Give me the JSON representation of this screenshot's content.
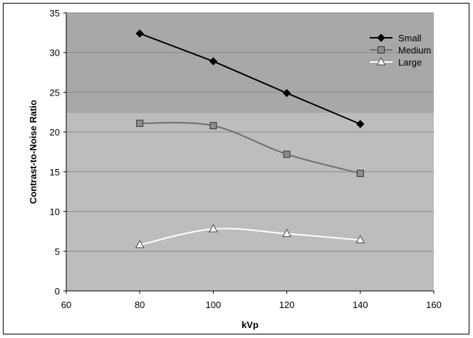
{
  "chart_data": {
    "type": "line",
    "title": "",
    "xlabel": "kVp",
    "ylabel": "Contrast-to-Noise Ratio",
    "xlim": [
      60,
      160
    ],
    "ylim": [
      0,
      35
    ],
    "x_ticks": [
      60,
      80,
      100,
      120,
      140,
      160
    ],
    "y_ticks": [
      0,
      5,
      10,
      15,
      20,
      25,
      30,
      35
    ],
    "grid": "horizontal",
    "legend_position": "top-right",
    "x": [
      80,
      100,
      120,
      140
    ],
    "series": [
      {
        "name": "Small",
        "values": [
          32.4,
          28.9,
          24.9,
          21.0
        ],
        "color": "#000000",
        "marker": "diamond",
        "marker_fill": "#000000"
      },
      {
        "name": "Medium",
        "values": [
          21.1,
          20.8,
          17.2,
          14.8
        ],
        "color": "#6e6e6e",
        "marker": "square",
        "marker_fill": "#8c8c8c"
      },
      {
        "name": "Large",
        "values": [
          5.8,
          7.8,
          7.2,
          6.4
        ],
        "color": "#ffffff",
        "marker": "triangle",
        "marker_fill": "#ffffff"
      }
    ],
    "plot_background": "#bdbdbd",
    "plot_background_upper": "#a8a8a8",
    "gridline_color": "#8a8a8a"
  }
}
